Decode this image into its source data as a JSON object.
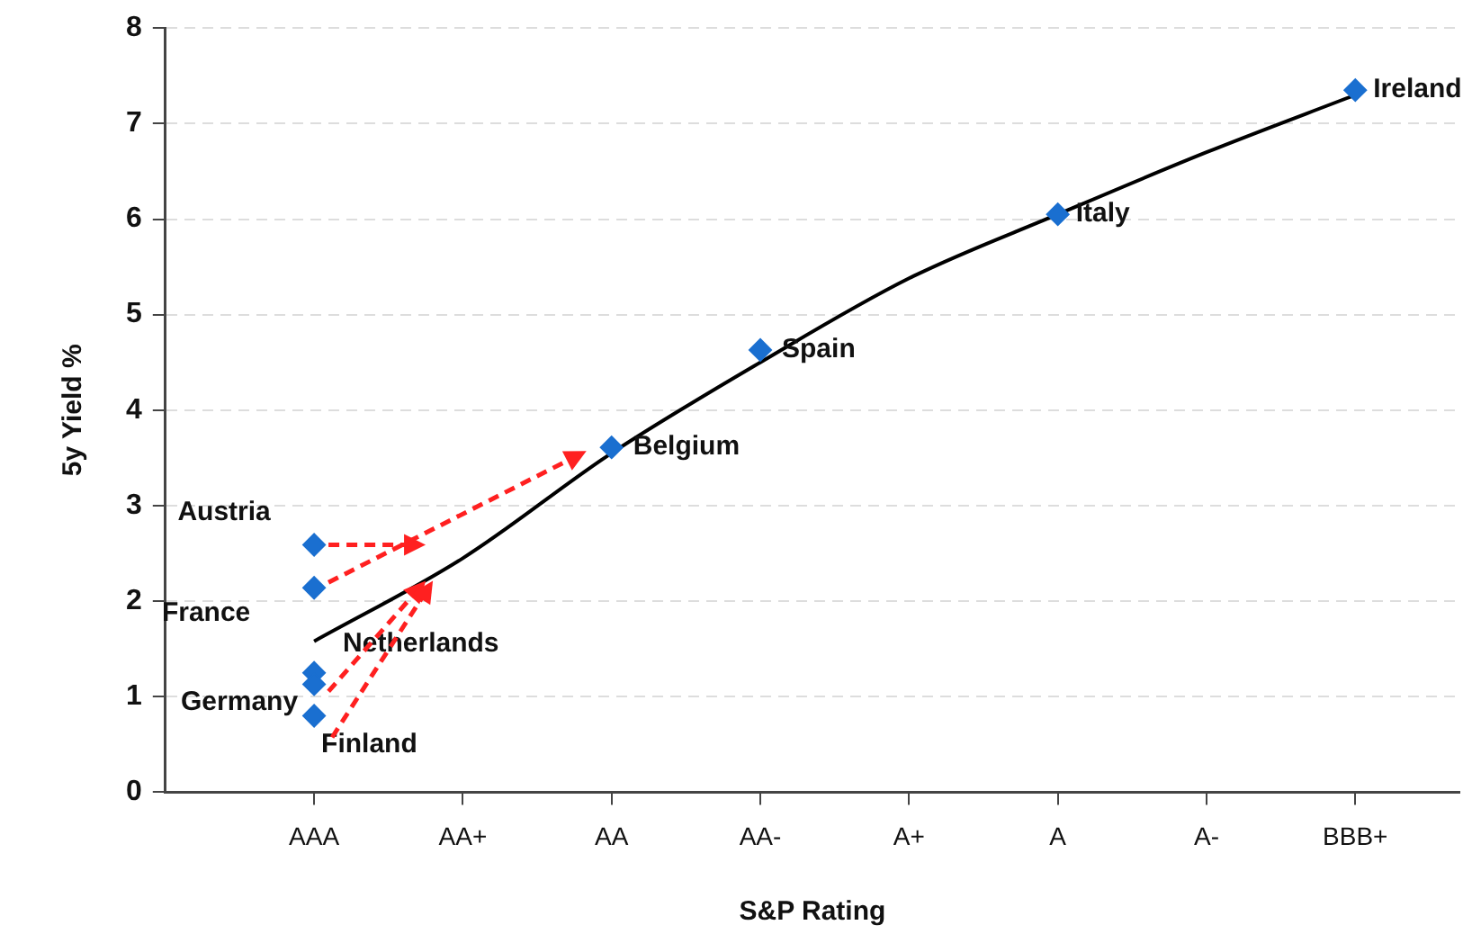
{
  "chart_data": {
    "type": "scatter",
    "xlabel": "S&P Rating",
    "ylabel": "5y Yield %",
    "categories": [
      "AAA",
      "AA+",
      "AA",
      "AA-",
      "A+",
      "A",
      "A-",
      "BBB+"
    ],
    "series": [
      {
        "type": "line",
        "color": "#000000",
        "marker": "none",
        "values": [
          1.58,
          2.45,
          3.55,
          4.5,
          5.38,
          6.05,
          6.7,
          7.3
        ]
      },
      {
        "type": "scatter",
        "color": "#1a6fd0",
        "marker": "diamond",
        "x": [
          "AAA",
          "AAA",
          "AAA",
          "AAA",
          "AAA",
          "AA",
          "AA-",
          "A",
          "BBB+"
        ],
        "values": [
          2.59,
          2.14,
          1.25,
          1.13,
          0.8,
          3.61,
          4.63,
          6.05,
          7.35
        ]
      }
    ],
    "annotations": [
      {
        "text": "Austria",
        "x": "AAA",
        "y": 2.59
      },
      {
        "text": "France",
        "x": "AAA",
        "y": 2.14
      },
      {
        "text": "Netherlands",
        "x": "AAA",
        "y": 1.25
      },
      {
        "text": "Germany",
        "x": "AAA",
        "y": 1.13
      },
      {
        "text": "Finland",
        "x": "AAA",
        "y": 0.8
      },
      {
        "text": "Belgium",
        "x": "AA",
        "y": 3.61
      },
      {
        "text": "Spain",
        "x": "AA-",
        "y": 4.63
      },
      {
        "text": "Italy",
        "x": "A",
        "y": 6.05
      },
      {
        "text": "Ireland",
        "x": "BBB+",
        "y": 7.35
      }
    ],
    "ylim": [
      0,
      8
    ],
    "yticks": [
      0,
      1,
      2,
      3,
      4,
      5,
      6,
      7,
      8
    ],
    "grid": "y",
    "legend": false
  }
}
